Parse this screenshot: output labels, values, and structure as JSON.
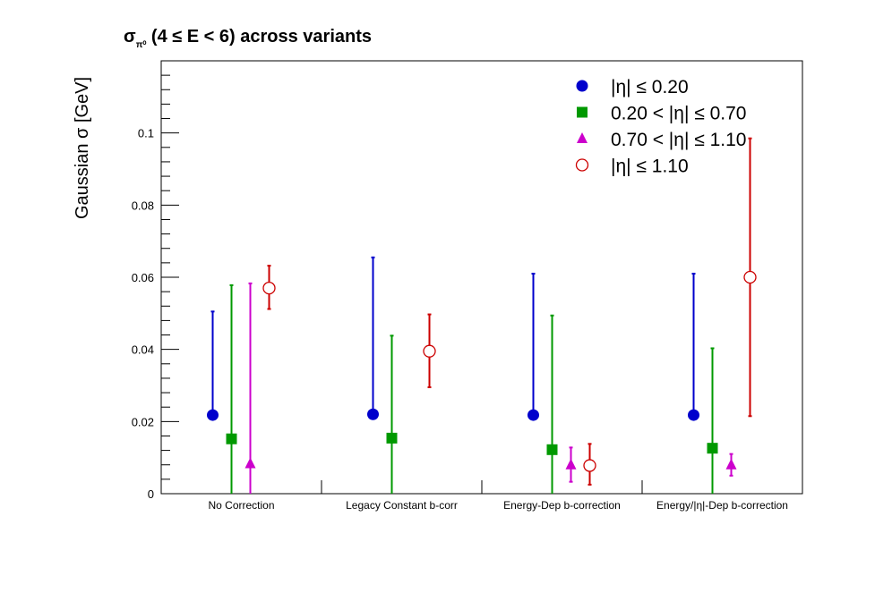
{
  "chart_data": {
    "type": "scatter",
    "title_main": "σ",
    "title_sub": "π⁰",
    "title_rest": " (4 ≤ E < 6) across variants",
    "ylabel": "Gaussian σ  [GeV]",
    "xlabel": "",
    "ylim": [
      0,
      0.12
    ],
    "yticks": [
      0,
      0.02,
      0.04,
      0.06,
      0.08,
      0.1
    ],
    "ytick_labels": [
      "0",
      "0.02",
      "0.04",
      "0.06",
      "0.08",
      "0.1"
    ],
    "categories": [
      "No Correction",
      "Legacy Constant b-corr",
      "Energy-Dep b-correction",
      "Energy/|η|-Dep b-correction"
    ],
    "legend_position": "top-right",
    "grid": false,
    "series": [
      {
        "name": "|η| ≤ 0.20",
        "color": "#0000cc",
        "marker": "circle",
        "values": [
          0.0218,
          0.022,
          0.0218,
          0.0218
        ],
        "err_low": [
          0.0218,
          0.022,
          0.0218,
          0.0218
        ],
        "err_high": [
          0.0505,
          0.0655,
          0.061,
          0.061
        ]
      },
      {
        "name": "0.20 < |η| ≤ 0.70",
        "color": "#009900",
        "marker": "square",
        "values": [
          0.0152,
          0.0154,
          0.0122,
          0.0126
        ],
        "err_low": [
          0.0,
          0.0,
          0.0,
          0.0
        ],
        "err_high": [
          0.0578,
          0.0438,
          0.0494,
          0.0403
        ]
      },
      {
        "name": "0.70 < |η| ≤ 1.10",
        "color": "#cc00cc",
        "marker": "triangle",
        "values": [
          0.0083,
          null,
          0.008,
          0.008
        ],
        "err_low": [
          0.0,
          null,
          0.0033,
          0.005
        ],
        "err_high": [
          0.0583,
          null,
          0.0128,
          0.011
        ]
      },
      {
        "name": "|η| ≤ 1.10",
        "color": "#cc0000",
        "marker": "open-circle",
        "values": [
          0.057,
          0.0395,
          0.0078,
          0.06
        ],
        "err_low": [
          0.0512,
          0.0295,
          0.0025,
          0.0215
        ],
        "err_high": [
          0.0632,
          0.0497,
          0.0138,
          0.0985
        ]
      }
    ]
  }
}
